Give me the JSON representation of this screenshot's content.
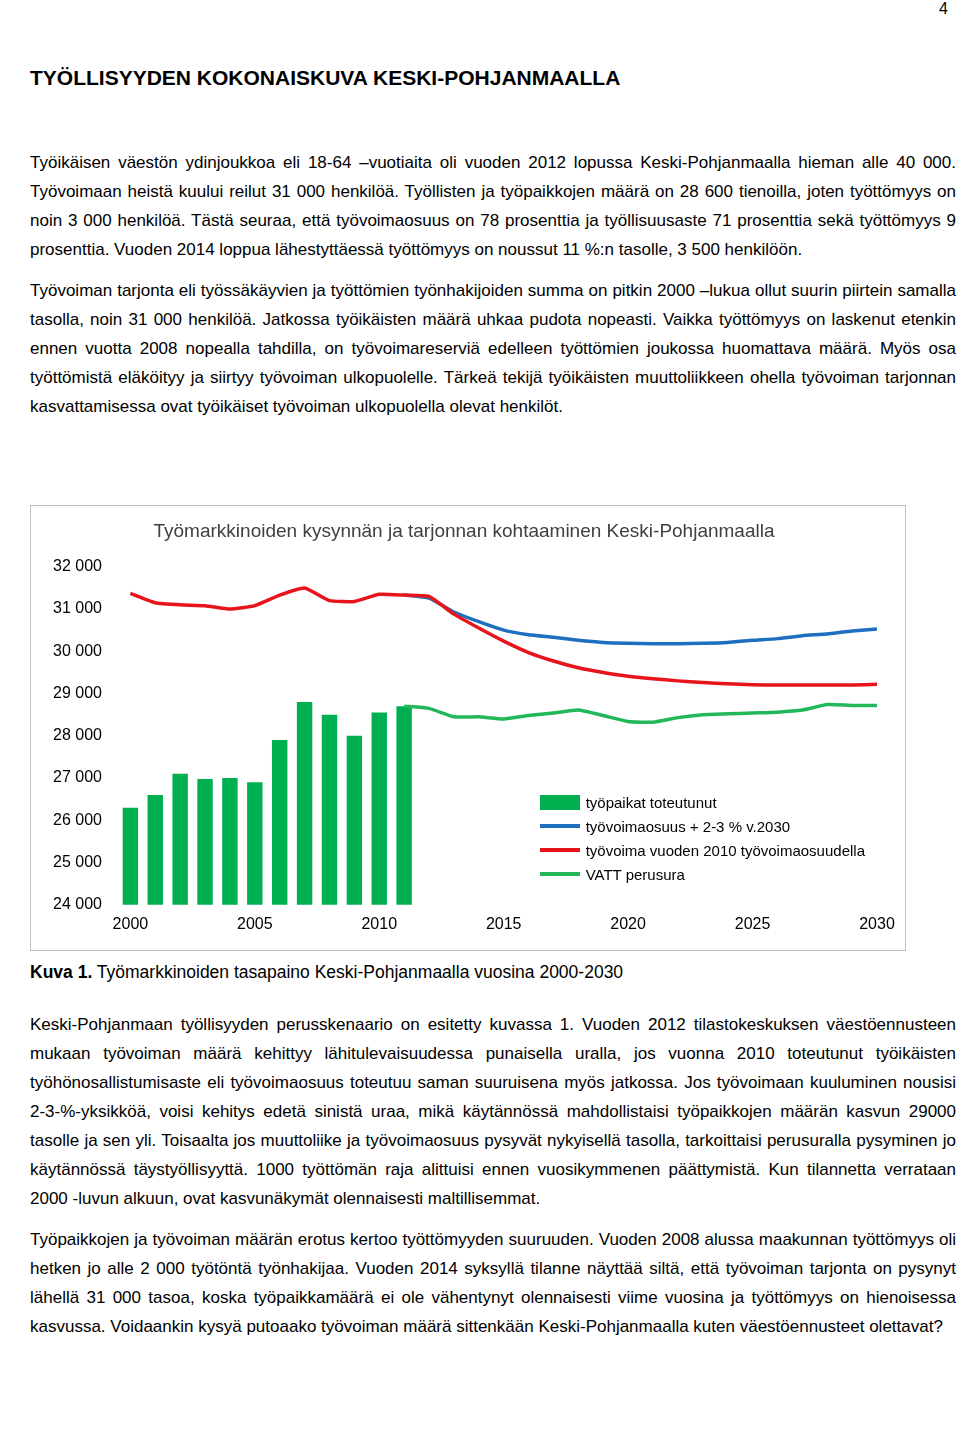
{
  "page_number": "4",
  "heading": "TYÖLLISYYDEN KOKONAISKUVA KESKI-POHJANMAALLA",
  "paragraphs_before": [
    "Työikäisen väestön ydinjoukkoa eli 18-64 –vuotiaita oli vuoden 2012 lopussa Keski-Pohjanmaalla hieman alle 40 000. Työvoimaan heistä kuului reilut 31 000 henkilöä. Työllisten ja työpaikkojen määrä on 28 600 tienoilla, joten työttömyys on noin 3 000 henkilöä. Tästä seuraa, että työvoimaosuus on 78 prosenttia ja työllisuusaste 71 prosenttia sekä työttömyys 9 prosenttia. Vuoden 2014 loppua lähestyttäessä työttömyys on noussut 11 %:n tasolle, 3 500 henkilöön.",
    "Työvoiman tarjonta eli työssäkäyvien ja työttömien työnhakijoiden summa on pitkin 2000 –lukua ollut suurin piirtein samalla tasolla, noin 31 000 henkilöä. Jatkossa työikäisten määrä uhkaa pudota nopeasti. Vaikka työttömyys on laskenut etenkin ennen vuotta 2008 nopealla tahdilla, on työvoimareserviä edelleen työttömien joukossa huomattava määrä. Myös osa työttömistä eläköityy ja siirtyy työvoiman ulkopuolelle. Tärkeä tekijä työikäisten muuttoliikkeen ohella työvoiman tarjonnan kasvattamisessa ovat työikäiset työvoiman ulkopuolella olevat henkilöt."
  ],
  "chart_data": {
    "type": "bar",
    "title": "Työmarkkinoiden kysynnän ja tarjonnan kohtaaminen Keski-Pohjanmaalla",
    "categories": [
      2000,
      null,
      null,
      null,
      null,
      2005,
      null,
      null,
      null,
      null,
      2010,
      null,
      null,
      null,
      null,
      2015,
      null,
      null,
      null,
      null,
      2020,
      null,
      null,
      null,
      null,
      2025,
      null,
      null,
      null,
      null,
      2030
    ],
    "ylim": [
      24000,
      32000
    ],
    "yticks": [
      {
        "value": 24000,
        "label": "24 000"
      },
      {
        "value": 25000,
        "label": "25 000"
      },
      {
        "value": 26000,
        "label": "26 000"
      },
      {
        "value": 27000,
        "label": "27 000"
      },
      {
        "value": 28000,
        "label": "28 000"
      },
      {
        "value": 29000,
        "label": "29 000"
      },
      {
        "value": 30000,
        "label": "30 000"
      },
      {
        "value": 31000,
        "label": "31 000"
      },
      {
        "value": 32000,
        "label": "32 000"
      }
    ],
    "grid": false,
    "legend": "lower right",
    "series": [
      {
        "name": "työpaikat toteutunut",
        "type": "bar",
        "color": "#00b050",
        "values": [
          26300,
          26600,
          27100,
          26980,
          27000,
          26900,
          27900,
          28800,
          28500,
          28000,
          28550,
          28700,
          null,
          null,
          null,
          null,
          null,
          null,
          null,
          null,
          null,
          null,
          null,
          null,
          null,
          null,
          null,
          null,
          null,
          null,
          null
        ]
      },
      {
        "name": "työvoimaosuus + 2-3 % v.2030",
        "type": "line",
        "color": "#1f6fc0",
        "values": [
          null,
          null,
          null,
          null,
          null,
          null,
          null,
          null,
          null,
          null,
          null,
          31330,
          31260,
          30930,
          30700,
          30500,
          30390,
          30330,
          30260,
          30210,
          30190,
          30180,
          30180,
          30190,
          30210,
          30260,
          30300,
          30370,
          30410,
          30480,
          30530
        ]
      },
      {
        "name": "työvoima vuoden 2010 työvoimaosuudella",
        "type": "line",
        "color": "#e8141b",
        "values": [
          31370,
          31150,
          31100,
          31080,
          31000,
          31080,
          31330,
          31500,
          31200,
          31180,
          31350,
          31330,
          31300,
          30880,
          30550,
          30240,
          29970,
          29770,
          29610,
          29500,
          29410,
          29350,
          29300,
          29260,
          29230,
          29210,
          29200,
          29200,
          29200,
          29200,
          29220
        ]
      },
      {
        "name": "VATT perusura",
        "type": "line",
        "color": "#22b85a",
        "values": [
          null,
          null,
          null,
          null,
          null,
          null,
          null,
          null,
          null,
          null,
          null,
          28700,
          28650,
          28450,
          28450,
          28400,
          28480,
          28540,
          28610,
          28480,
          28340,
          28320,
          28430,
          28500,
          28520,
          28540,
          28560,
          28610,
          28740,
          28720,
          28720
        ]
      }
    ]
  },
  "caption": {
    "label": "Kuva 1.",
    "text": "Työmarkkinoiden tasapaino Keski-Pohjanmaalla vuosina 2000-2030"
  },
  "paragraphs_after": [
    "Keski-Pohjanmaan työllisyyden perusskenaario on esitetty kuvassa 1. Vuoden 2012 tilastokeskuksen väestöennusteen mukaan työvoiman määrä kehittyy lähitulevaisuudessa punaisella uralla, jos vuonna 2010 toteutunut työikäisten työhönosallistumisaste eli työvoimaosuus toteutuu saman suuruisena myös jatkossa. Jos työvoimaan kuuluminen nousisi 2-3-%-yksikköä, voisi kehitys edetä sinistä uraa, mikä käytännössä mahdollistaisi työpaikkojen määrän kasvun 29000 tasolle ja sen yli. Toisaalta jos muuttoliike ja työvoimaosuus pysyvät nykyisellä tasolla, tarkoittaisi perusuralla pysyminen jo käytännössä täystyöllisyyttä. 1000 työttömän raja alittuisi ennen vuosikymmenen päättymistä. Kun tilannetta verrataan 2000 -luvun alkuun, ovat kasvunäkymät olennaisesti maltillisemmat.",
    "Työpaikkojen ja työvoiman määrän erotus kertoo työttömyyden suuruuden. Vuoden 2008 alussa maakunnan työttömyys oli hetken jo alle 2 000 työtöntä työnhakijaa. Vuoden 2014 syksyllä tilanne näyttää siltä, että työvoiman tarjonta on pysynyt lähellä 31 000 tasoa, koska työpaikkamäärä ei ole vähentynyt olennaisesti viime vuosina ja työttömyys on hienoisessa kasvussa. Voidaankin kysyä putoaako työvoiman määrä sittenkään Keski-Pohjanmaalla kuten väestöennusteet olettavat?"
  ]
}
